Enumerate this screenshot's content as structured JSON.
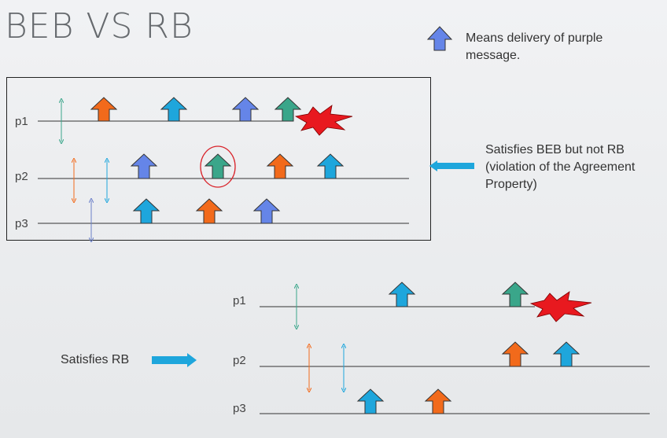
{
  "title": "BEB VS RB",
  "legend": {
    "text": "Means delivery of purple message."
  },
  "beb_diagram": {
    "processes": [
      "p1",
      "p2",
      "p3"
    ],
    "note": "Satisfies BEB but not RB (violation of the Agreement Property)"
  },
  "rb_diagram": {
    "processes": [
      "p1",
      "p2",
      "p3"
    ],
    "label": "Satisfies RB"
  },
  "colors": {
    "orange": "#f26a1b",
    "blue": "#1ea6dc",
    "purple": "#6585e8",
    "green": "#3aa68a",
    "crash": "#e8191f",
    "pointer": "#1ea6dc",
    "circle": "#d9232a"
  }
}
